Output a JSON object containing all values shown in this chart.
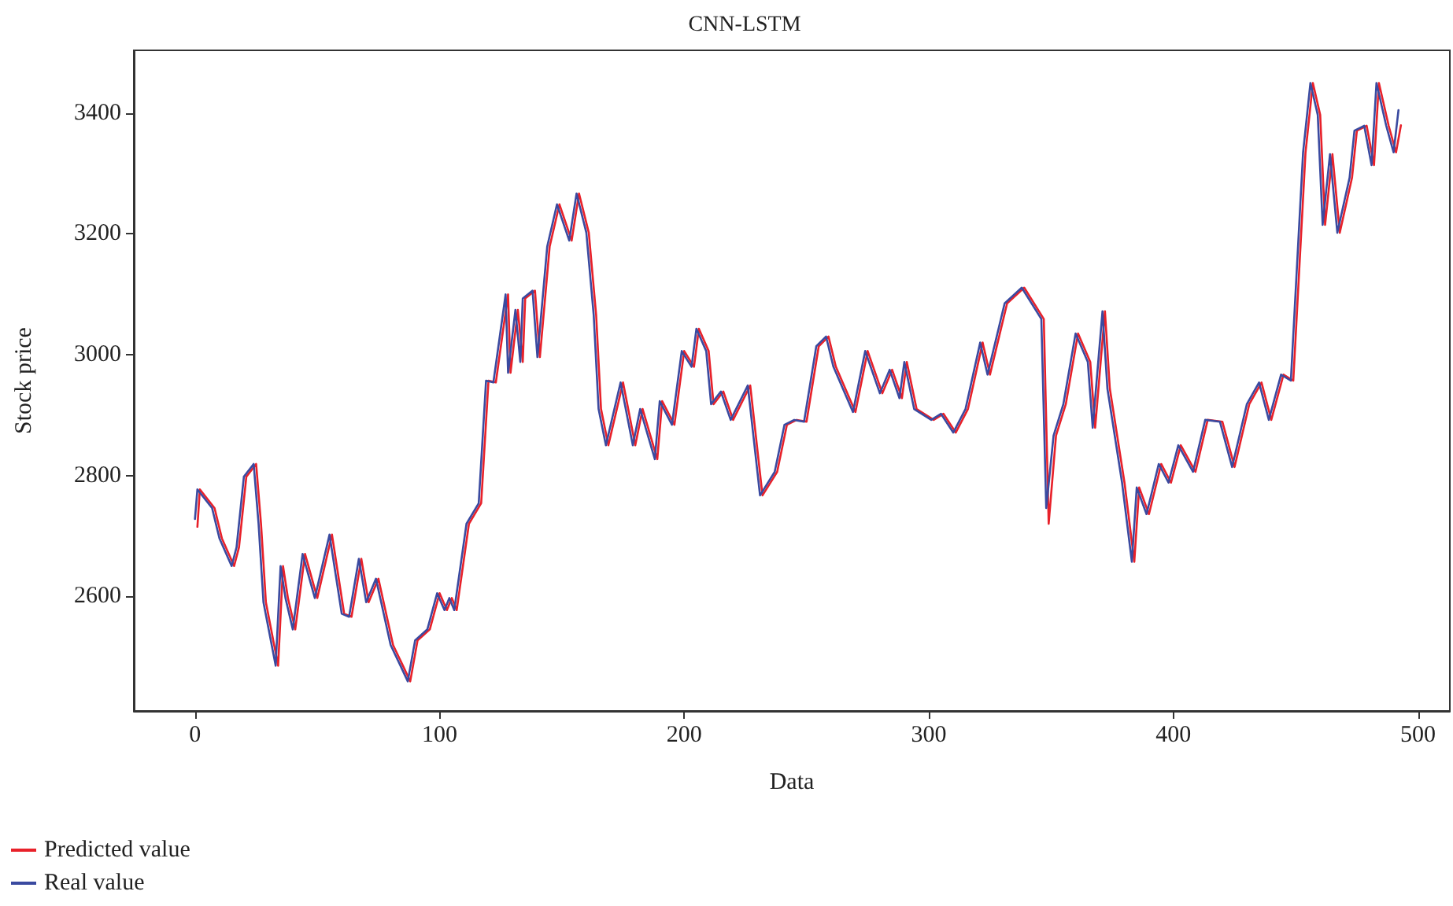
{
  "chart_data": {
    "type": "line",
    "title": "CNN-LSTM",
    "xlabel": "Data",
    "ylabel": "Stock price",
    "xlim": [
      -25,
      513
    ],
    "xticks": [
      0,
      100,
      200,
      300,
      400,
      500
    ],
    "ylim": [
      2410,
      3504
    ],
    "yticks": [
      2600,
      2800,
      3000,
      3200,
      3400
    ],
    "grid": false,
    "legend": "bottom left",
    "marker": "none",
    "line_style": "solid",
    "series": [
      {
        "name": "Predicted value",
        "color": "#e8212a",
        "x": [
          1,
          2,
          8,
          11,
          16,
          18,
          21,
          25,
          27,
          29,
          34,
          36,
          38,
          41,
          45,
          50,
          56,
          61,
          64,
          68,
          71,
          75,
          81,
          85,
          88,
          91,
          96,
          100,
          103,
          105,
          107,
          112,
          117,
          120,
          123,
          128,
          129,
          132,
          134,
          135,
          139,
          141,
          145,
          149,
          154,
          157,
          161,
          164,
          166,
          169,
          175,
          180,
          183,
          189,
          191,
          196,
          200,
          204,
          206,
          210,
          212,
          216,
          220,
          227,
          232,
          238,
          242,
          246,
          250,
          255,
          259,
          262,
          270,
          275,
          281,
          285,
          289,
          291,
          295,
          302,
          306,
          311,
          316,
          322,
          325,
          332,
          339,
          347,
          349,
          352,
          356,
          361,
          366,
          368,
          372,
          374,
          380,
          384,
          386,
          390,
          395,
          399,
          403,
          409,
          414,
          420,
          425,
          431,
          436,
          440,
          445,
          449,
          454,
          457,
          460,
          462,
          465,
          468,
          473,
          475,
          479,
          482,
          484,
          488,
          491,
          493
        ],
        "values": [
          2715,
          2777,
          2746,
          2696,
          2650,
          2681,
          2798,
          2819,
          2720,
          2590,
          2485,
          2650,
          2597,
          2545,
          2670,
          2597,
          2702,
          2571,
          2566,
          2662,
          2590,
          2629,
          2519,
          2485,
          2459,
          2527,
          2545,
          2605,
          2577,
          2597,
          2577,
          2720,
          2754,
          2957,
          2954,
          3100,
          2970,
          3074,
          2988,
          3093,
          3106,
          2996,
          3179,
          3249,
          3189,
          3267,
          3202,
          3066,
          2910,
          2850,
          2954,
          2850,
          2910,
          2827,
          2923,
          2884,
          3006,
          2980,
          3043,
          3006,
          2918,
          2939,
          2892,
          2949,
          2767,
          2806,
          2884,
          2892,
          2889,
          3014,
          3030,
          2980,
          2905,
          3006,
          2936,
          2975,
          2928,
          2988,
          2910,
          2892,
          2902,
          2871,
          2910,
          3020,
          2967,
          3085,
          3111,
          3059,
          2720,
          2866,
          2918,
          3035,
          2988,
          2879,
          3072,
          2944,
          2788,
          2657,
          2780,
          2736,
          2819,
          2788,
          2850,
          2806,
          2892,
          2889,
          2814,
          2918,
          2954,
          2892,
          2967,
          2957,
          3335,
          3450,
          3397,
          3215,
          3332,
          3202,
          3293,
          3371,
          3379,
          3314,
          3450,
          3379,
          3335,
          3380
        ]
      },
      {
        "name": "Real value",
        "color": "#3a4aa0",
        "x": [
          0,
          1,
          7,
          10,
          15,
          17,
          20,
          24,
          26,
          28,
          33,
          35,
          37,
          40,
          44,
          49,
          55,
          60,
          63,
          67,
          70,
          74,
          80,
          84,
          87,
          90,
          95,
          99,
          102,
          104,
          106,
          111,
          116,
          119,
          122,
          127,
          128,
          131,
          133,
          134,
          138,
          140,
          144,
          148,
          153,
          156,
          160,
          163,
          165,
          168,
          174,
          179,
          182,
          188,
          190,
          195,
          199,
          203,
          205,
          209,
          211,
          215,
          219,
          226,
          231,
          237,
          241,
          245,
          249,
          254,
          258,
          261,
          269,
          274,
          280,
          284,
          288,
          290,
          294,
          301,
          305,
          310,
          315,
          321,
          324,
          331,
          338,
          346,
          348,
          351,
          355,
          360,
          365,
          367,
          371,
          373,
          379,
          383,
          385,
          389,
          394,
          398,
          402,
          408,
          413,
          419,
          424,
          430,
          435,
          439,
          444,
          448,
          453,
          456,
          459,
          461,
          464,
          467,
          472,
          474,
          478,
          481,
          483,
          487,
          490,
          492
        ],
        "values": [
          2728,
          2777,
          2746,
          2696,
          2650,
          2681,
          2798,
          2819,
          2720,
          2590,
          2485,
          2650,
          2597,
          2545,
          2670,
          2597,
          2702,
          2571,
          2566,
          2662,
          2590,
          2629,
          2519,
          2485,
          2459,
          2527,
          2545,
          2605,
          2577,
          2597,
          2577,
          2720,
          2754,
          2957,
          2954,
          3100,
          2970,
          3074,
          2988,
          3093,
          3106,
          2996,
          3179,
          3249,
          3189,
          3267,
          3202,
          3066,
          2910,
          2850,
          2954,
          2850,
          2910,
          2827,
          2923,
          2884,
          3006,
          2980,
          3043,
          3006,
          2918,
          2939,
          2892,
          2949,
          2767,
          2806,
          2884,
          2892,
          2889,
          3014,
          3030,
          2980,
          2905,
          3006,
          2936,
          2975,
          2928,
          2988,
          2910,
          2892,
          2902,
          2871,
          2910,
          3020,
          2967,
          3085,
          3111,
          3059,
          2746,
          2866,
          2918,
          3035,
          2988,
          2879,
          3072,
          2944,
          2788,
          2657,
          2780,
          2736,
          2819,
          2788,
          2850,
          2806,
          2892,
          2889,
          2814,
          2918,
          2954,
          2892,
          2967,
          2957,
          3335,
          3450,
          3397,
          3215,
          3332,
          3202,
          3293,
          3371,
          3379,
          3314,
          3450,
          3379,
          3335,
          3405
        ]
      }
    ]
  }
}
